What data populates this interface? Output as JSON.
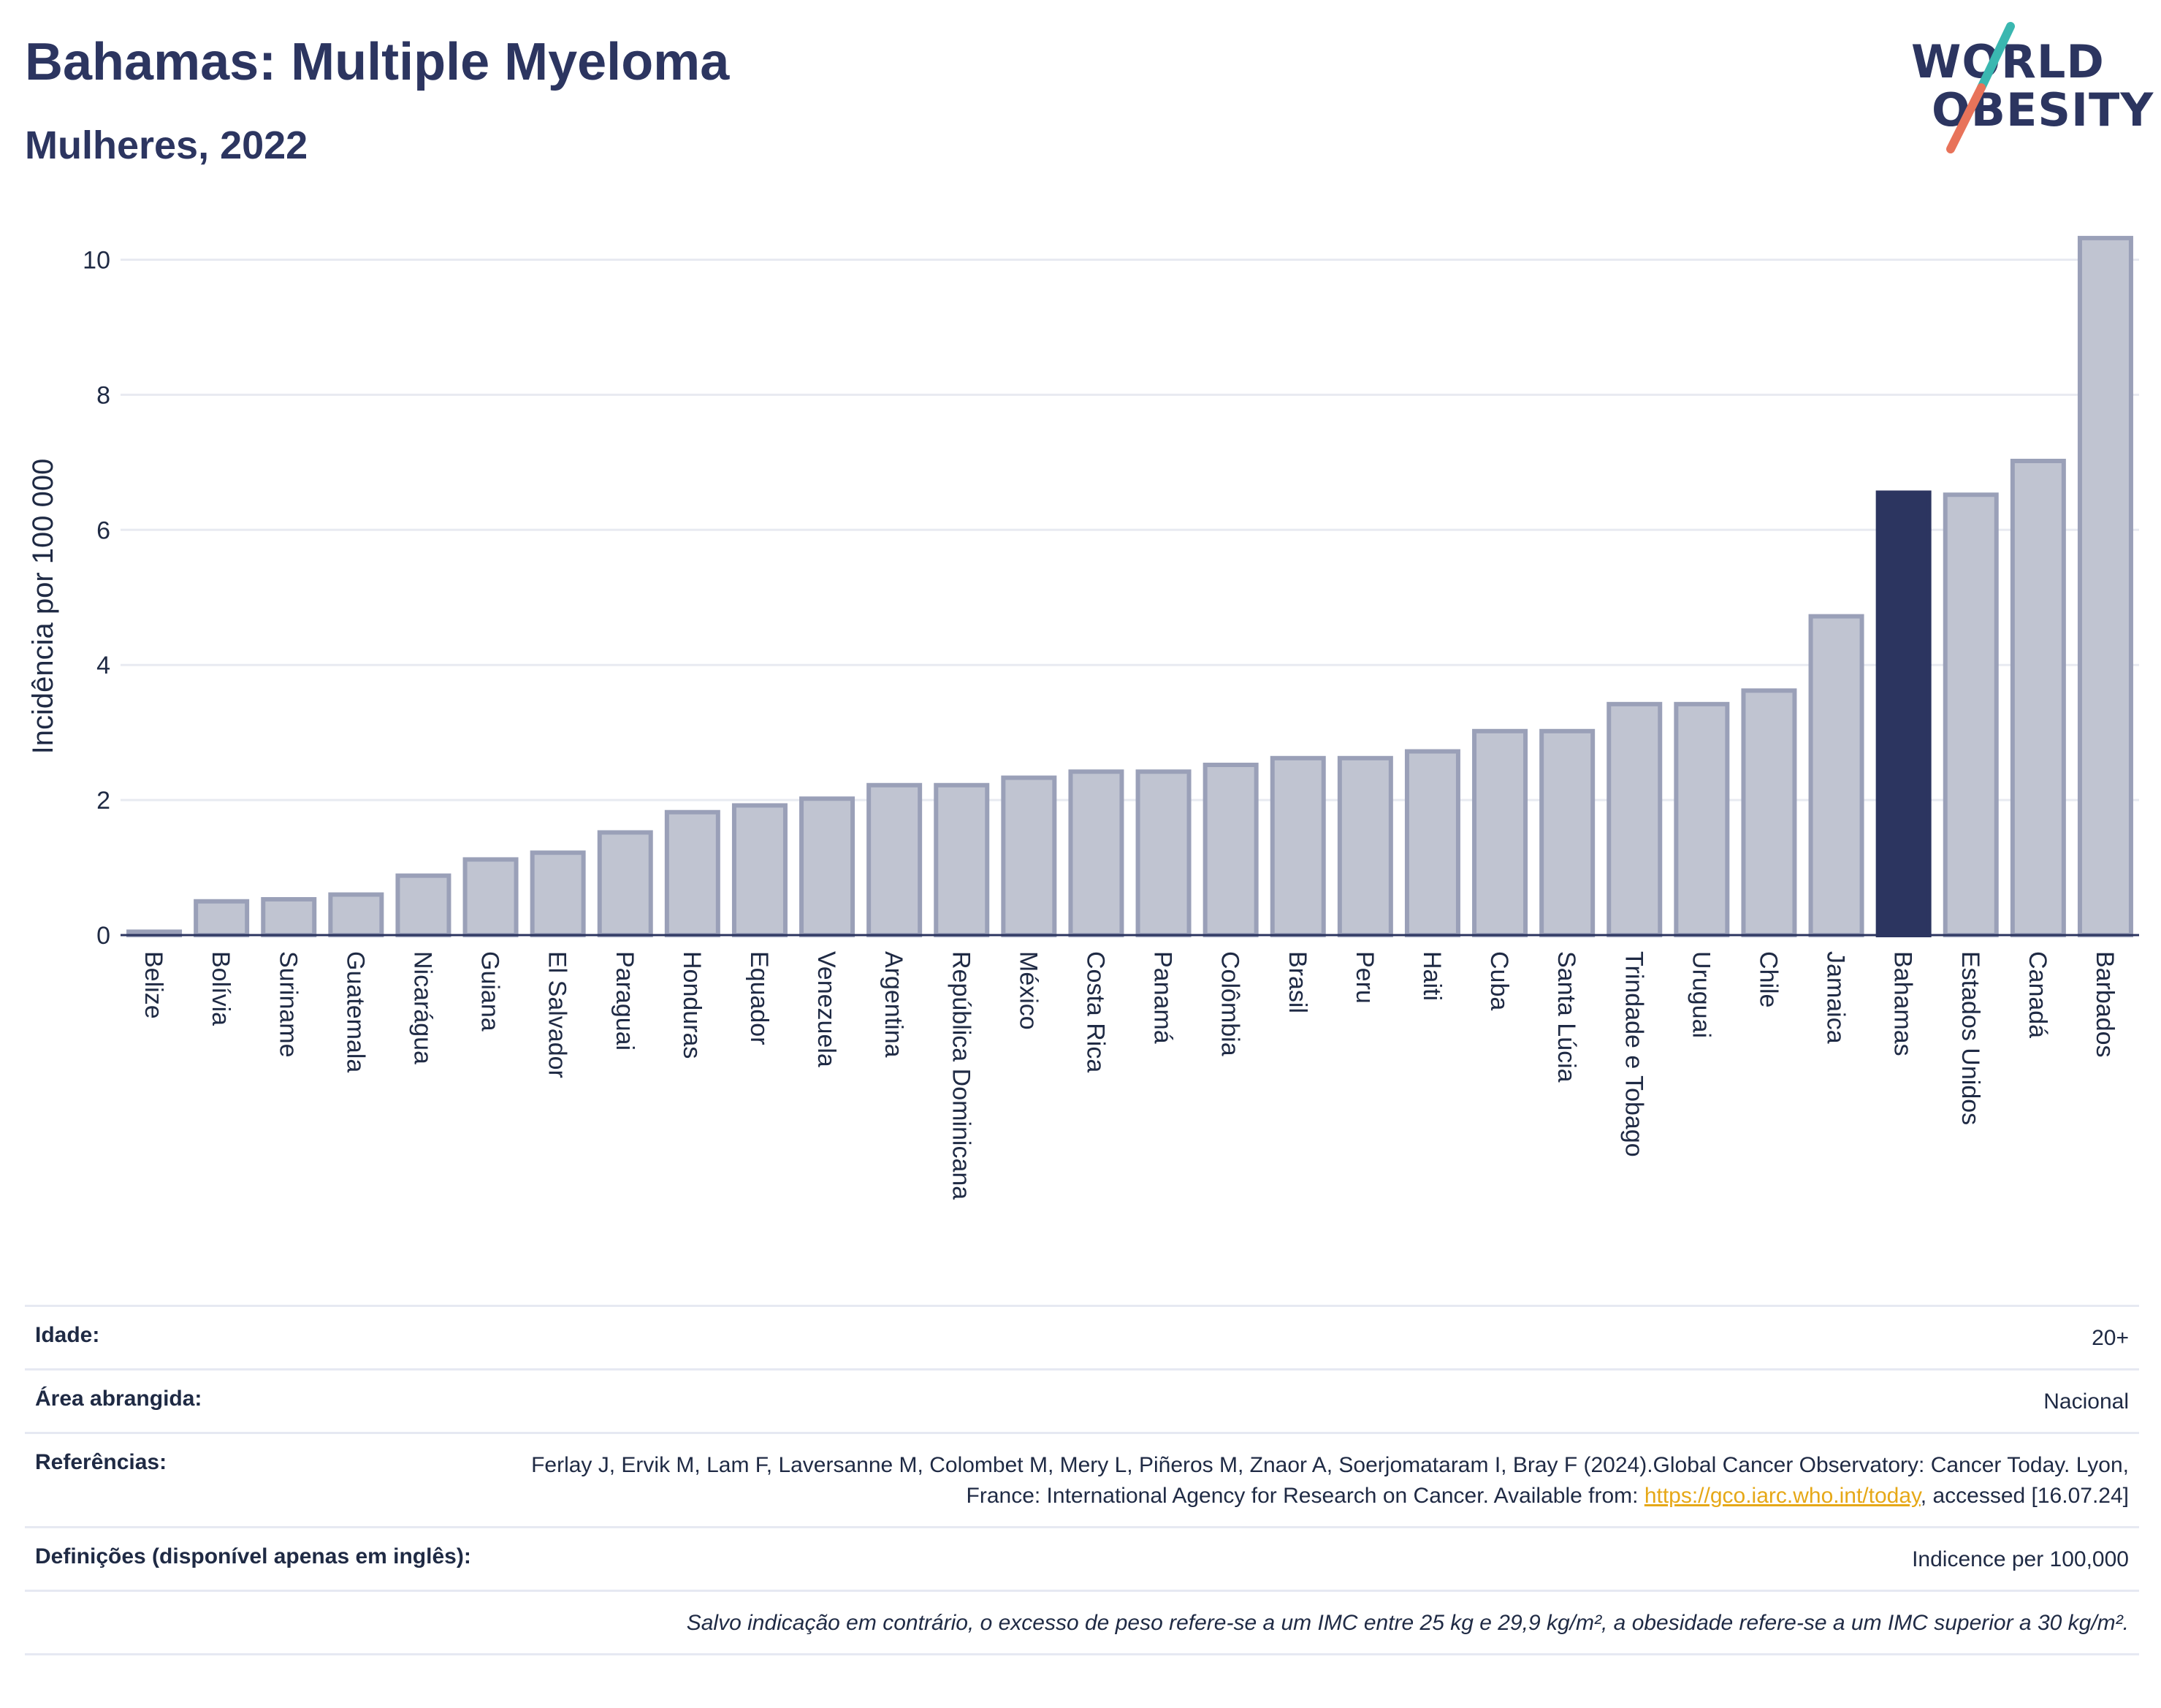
{
  "header": {
    "title": "Bahamas: Multiple Myeloma",
    "subtitle": "Mulheres, 2022"
  },
  "logo": {
    "line1": "WORLD",
    "line2": "OBESITY"
  },
  "chart_data": {
    "type": "bar",
    "title": "Bahamas: Multiple Myeloma",
    "subtitle": "Mulheres, 2022",
    "xlabel": "",
    "ylabel": "Incidência por 100 000",
    "ylim": [
      0,
      10.6
    ],
    "yticks": [
      0,
      2,
      4,
      6,
      8,
      10
    ],
    "grid": true,
    "highlight": "Bahamas",
    "colors": {
      "default": "#c0c4d1",
      "default_border": "#9aa0b8",
      "highlight": "#2c3560",
      "grid": "#e8eaf1",
      "axis": "#2c3560"
    },
    "categories": [
      "Belize",
      "Bolívia",
      "Suriname",
      "Guatemala",
      "Nicarágua",
      "Guiana",
      "El Salvador",
      "Paraguai",
      "Honduras",
      "Equador",
      "Venezuela",
      "Argentina",
      "República Dominicana",
      "México",
      "Costa Rica",
      "Panamá",
      "Colômbia",
      "Brasil",
      "Peru",
      "Haiti",
      "Cuba",
      "Santa Lúcia",
      "Trindade e Tobago",
      "Uruguai",
      "Chile",
      "Jamaica",
      "Bahamas",
      "Estados Unidos",
      "Canadá",
      "Barbados"
    ],
    "values": [
      0.05,
      0.5,
      0.53,
      0.6,
      0.88,
      1.12,
      1.22,
      1.52,
      1.82,
      1.92,
      2.02,
      2.22,
      2.22,
      2.33,
      2.42,
      2.42,
      2.52,
      2.62,
      2.62,
      2.72,
      3.02,
      3.02,
      3.42,
      3.42,
      3.62,
      4.72,
      6.55,
      6.52,
      7.02,
      10.32
    ]
  },
  "meta": {
    "age_label": "Idade:",
    "age_value": "20+",
    "area_label": "Área abrangida:",
    "area_value": "Nacional",
    "ref_label": "Referências:",
    "ref_text_1": "Ferlay J, Ervik M, Lam F, Laversanne M, Colombet M, Mery L, Piñeros M, Znaor A, Soerjomataram I, Bray F (2024).Global Cancer Observatory: Cancer Today. Lyon, France: International Agency for Research on Cancer. Available from: ",
    "ref_link": "https://gco.iarc.who.int/today",
    "ref_text_2": ", accessed [16.07.24]",
    "def_label": "Definições (disponível apenas em inglês):",
    "def_value": "Indicence per 100,000",
    "note": "Salvo indicação em contrário, o excesso de peso refere-se a um IMC entre 25 kg e 29,9 kg/m², a obesidade refere-se a um IMC superior a 30 kg/m²."
  }
}
